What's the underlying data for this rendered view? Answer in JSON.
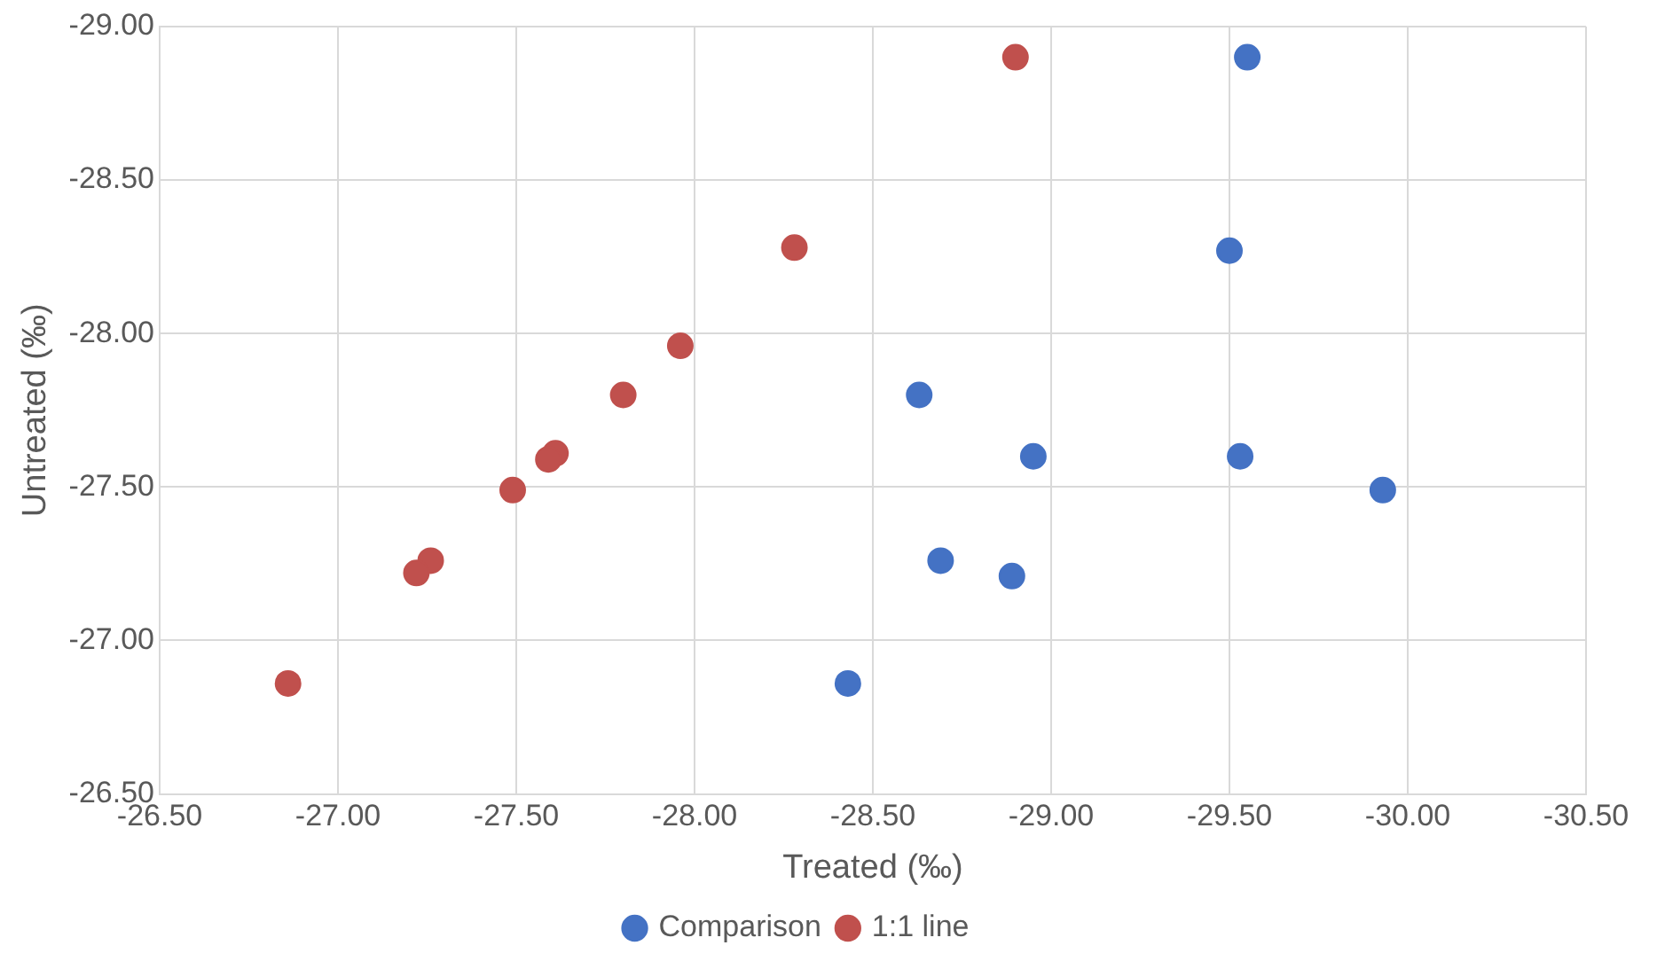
{
  "chart_data": {
    "type": "scatter",
    "xlabel": "Treated (‰)",
    "ylabel": "Untreated (‰)",
    "xlim": [
      -26.5,
      -30.5
    ],
    "ylim": [
      -26.5,
      -29
    ],
    "xticks": [
      {
        "value": -26.5,
        "label": "-26.50"
      },
      {
        "value": -27,
        "label": "-27.00"
      },
      {
        "value": -27.5,
        "label": "-27.50"
      },
      {
        "value": -28,
        "label": "-28.00"
      },
      {
        "value": -28.5,
        "label": "-28.50"
      },
      {
        "value": -29,
        "label": "-29.00"
      },
      {
        "value": -29.5,
        "label": "-29.50"
      },
      {
        "value": -30,
        "label": "-30.00"
      },
      {
        "value": -30.5,
        "label": "-30.50"
      }
    ],
    "yticks": [
      {
        "value": -26.5,
        "label": "-26.50"
      },
      {
        "value": -27,
        "label": "-27.00"
      },
      {
        "value": -27.5,
        "label": "-27.50"
      },
      {
        "value": -28,
        "label": "-28.00"
      },
      {
        "value": -28.5,
        "label": "-28.50"
      },
      {
        "value": -29,
        "label": "-29.00"
      }
    ],
    "grid": true,
    "legend": "bottom",
    "marker": "circle",
    "series": [
      {
        "name": "Comparison",
        "color": "#4472c4",
        "x": [
          -29.55,
          -29.5,
          -28.63,
          -28.95,
          -29.53,
          -29.93,
          -28.69,
          -28.89,
          -28.43
        ],
        "values": [
          -28.9,
          -28.27,
          -27.8,
          -27.6,
          -27.6,
          -27.49,
          -27.26,
          -27.21,
          -26.86
        ]
      },
      {
        "name": "1:1 line",
        "color": "#c0504d",
        "x": [
          -28.9,
          -28.28,
          -27.96,
          -27.8,
          -27.61,
          -27.59,
          -27.49,
          -27.26,
          -27.22,
          -26.86
        ],
        "values": [
          -28.9,
          -28.28,
          -27.96,
          -27.8,
          -27.61,
          -27.59,
          -27.49,
          -27.26,
          -27.22,
          -26.86
        ]
      }
    ]
  }
}
